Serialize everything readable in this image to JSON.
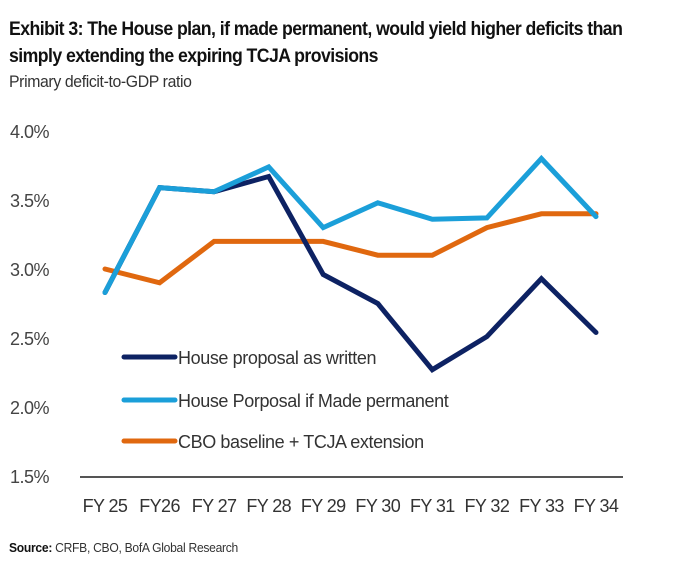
{
  "header": {
    "title": "Exhibit 3: The House plan, if made permanent, would yield higher deficits than simply extending the expiring TCJA provisions",
    "subtitle": "Primary deficit-to-GDP ratio"
  },
  "footer": {
    "source_label": "Source:",
    "source_text": " CRFB, CBO, BofA Global Research"
  },
  "chart_data": {
    "type": "line",
    "title": "Exhibit 3: The House plan, if made permanent, would yield higher deficits than simply extending the expiring TCJA provisions",
    "subtitle": "Primary deficit-to-GDP ratio",
    "xlabel": "",
    "ylabel": "",
    "categories": [
      "FY 25",
      "FY26",
      "FY 27",
      "FY 28",
      "FY 29",
      "FY 30",
      "FY 31",
      "FY 32",
      "FY 33",
      "FY 34"
    ],
    "ylim": [
      1.5,
      4.0
    ],
    "yticks": [
      4.0,
      3.5,
      3.0,
      2.5,
      2.0,
      1.5
    ],
    "ytick_labels": [
      "4.0%",
      "3.5%",
      "3.0%",
      "2.5%",
      "2.0%",
      "1.5%"
    ],
    "grid": false,
    "legend_position": "bottom-left inside plot",
    "series": [
      {
        "name": "House proposal as written",
        "color": "#0d2263",
        "values": [
          2.83,
          3.59,
          3.56,
          3.67,
          2.96,
          2.75,
          2.27,
          2.51,
          2.93,
          2.54
        ]
      },
      {
        "name": "House Porposal if Made permanent",
        "color": "#1b9fd9",
        "values": [
          2.83,
          3.59,
          3.56,
          3.74,
          3.3,
          3.48,
          3.36,
          3.37,
          3.8,
          3.38
        ]
      },
      {
        "name": "CBO baseline + TCJA extension",
        "color": "#e0680f",
        "values": [
          3.0,
          2.9,
          3.2,
          3.2,
          3.2,
          3.1,
          3.1,
          3.3,
          3.4,
          3.4
        ]
      }
    ]
  }
}
